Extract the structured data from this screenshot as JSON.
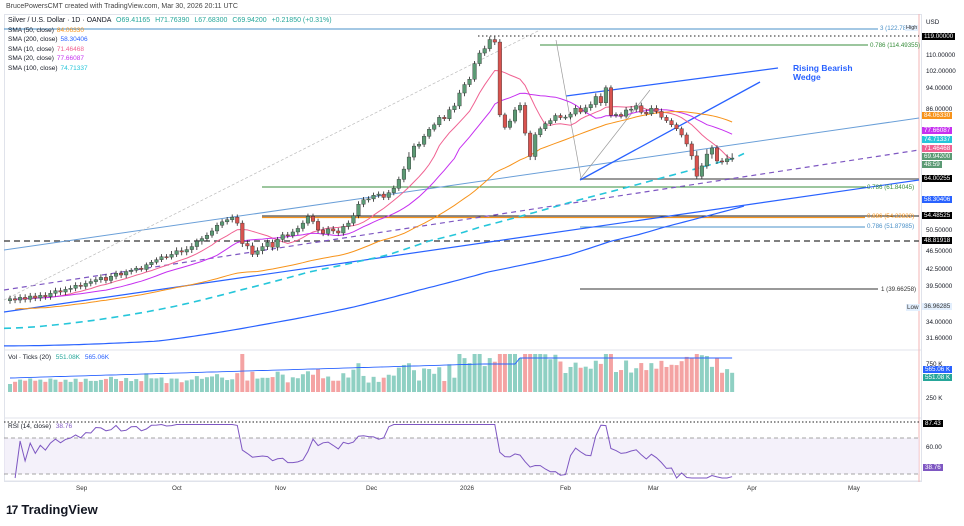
{
  "header": {
    "credit": "BrucePowersCMT created with TradingView.com, Mar 30, 2026 20:11 UTC",
    "symbol_line": "Silver / U.S. Dollar · 1D · OANDA",
    "ohlc": {
      "o": "O69.41165",
      "h": "H71.76390",
      "l": "L67.68300",
      "c": "C69.94200",
      "chg": "+0.21850 (+0.31%)"
    }
  },
  "legend": [
    {
      "label": "SMA (50, close)",
      "value": "84.06330",
      "color": "#f7931a"
    },
    {
      "label": "SMA (200, close)",
      "value": "58.30406",
      "color": "#2962ff"
    },
    {
      "label": "SMA (10, close)",
      "value": "71.46468",
      "color": "#f06292"
    },
    {
      "label": "SMA (20, close)",
      "value": "77.66087",
      "color": "#c630f0"
    },
    {
      "label": "SMA (100, close)",
      "value": "74.71337",
      "color": "#26c6da"
    }
  ],
  "annotation": {
    "line1": "Rising Bearish",
    "line2": "Wedge"
  },
  "fib_labels": [
    {
      "text": "3 (122.78",
      "color": "#4a90c8"
    },
    {
      "text": "0.786 (114.49355)",
      "color": "#388e3c"
    },
    {
      "text": "0.786 (61.84045)",
      "color": "#388e3c"
    },
    {
      "text": "0.886 (54.22832)",
      "color": "#f7931a"
    },
    {
      "text": "0.786 (51.87985)",
      "color": "#4a90c8"
    },
    {
      "text": "1 (39.66258)",
      "color": "#333333"
    }
  ],
  "price_axis": {
    "currency": "USD",
    "high_tag": "High",
    "low_tag": "Low",
    "ticks": [
      "110.00000",
      "102.00000",
      "94.00000",
      "86.00000",
      "50.50000",
      "46.50000",
      "42.50000",
      "39.50000",
      "34.00000",
      "31.60000"
    ],
    "pills": [
      {
        "text": "119.00000",
        "bg": "#000000"
      },
      {
        "text": "84.06330",
        "bg": "#f7931a"
      },
      {
        "text": "77.66087",
        "bg": "#c630f0"
      },
      {
        "text": "74.71337",
        "bg": "#26c6da"
      },
      {
        "text": "71.46468",
        "bg": "#f06292"
      },
      {
        "text": "69.94200",
        "bg": "#5b9a74"
      },
      {
        "text": "48:59",
        "bg": "#5b9a74"
      },
      {
        "text": "64.00255",
        "bg": "#000000"
      },
      {
        "text": "58.30406",
        "bg": "#2962ff"
      },
      {
        "text": "54.48525",
        "bg": "#000000"
      },
      {
        "text": "48.81918",
        "bg": "#000000"
      },
      {
        "text": "36.96285",
        "bg": "#e3effd"
      }
    ]
  },
  "volume": {
    "title": "Vol · Ticks (20)",
    "v1": "551.08K",
    "v2": "565.06K",
    "axis_ticks": [
      "750 K",
      "250 K"
    ],
    "pills": [
      {
        "text": "565.06 K",
        "bg": "#2962ff"
      },
      {
        "text": "551.08 K",
        "bg": "#26a69a"
      }
    ]
  },
  "rsi": {
    "title": "RSI (14, close)",
    "value": "38.76",
    "axis_ticks": [
      "60.00"
    ],
    "pills": [
      {
        "text": "87.43",
        "bg": "#000000"
      },
      {
        "text": "38.76",
        "bg": "#7e57c2"
      }
    ]
  },
  "time_axis": [
    "Sep",
    "Oct",
    "Nov",
    "Dec",
    "2026",
    "Feb",
    "Mar",
    "Apr",
    "May"
  ],
  "branding": "TradingView",
  "chart_data": {
    "type": "candlestick",
    "title": "Silver / U.S. Dollar · 1D · OANDA",
    "ylabel": "USD",
    "ylim": [
      30,
      125
    ],
    "x_range": [
      "Aug 2025",
      "May 2026"
    ],
    "closes": [
      38.2,
      38.0,
      38.4,
      38.1,
      38.6,
      38.3,
      38.7,
      38.5,
      39.0,
      39.4,
      39.2,
      39.6,
      39.8,
      40.3,
      40.1,
      40.6,
      40.9,
      41.2,
      41.6,
      41.1,
      41.8,
      42.3,
      42.0,
      42.6,
      42.9,
      43.4,
      43.1,
      44.2,
      44.8,
      45.4,
      46.1,
      46.0,
      46.6,
      47.2,
      47.0,
      47.4,
      47.9,
      48.8,
      49.4,
      50.2,
      51.1,
      52.3,
      53.1,
      53.6,
      54.2,
      52.8,
      48.4,
      48.0,
      46.6,
      47.2,
      47.9,
      48.6,
      47.8,
      49.2,
      50.3,
      50.1,
      50.9,
      51.6,
      52.8,
      54.4,
      53.2,
      51.3,
      50.6,
      51.5,
      51.1,
      50.7,
      52.0,
      52.8,
      54.6,
      57.3,
      58.4,
      58.6,
      59.6,
      59.9,
      59.0,
      60.3,
      61.5,
      63.9,
      66.8,
      70.1,
      72.4,
      73.0,
      75.7,
      78.4,
      80.3,
      83.5,
      82.9,
      86.8,
      88.1,
      92.6,
      96.1,
      98.6,
      106.2,
      111.4,
      113.5,
      117.8,
      116.6,
      84.6,
      79.2,
      81.9,
      86.7,
      88.3,
      76.9,
      70.2,
      76.3,
      78.6,
      80.8,
      82.1,
      84.3,
      83.4,
      83.6,
      85.0,
      87.3,
      86.0,
      87.5,
      88.6,
      91.4,
      89.2,
      94.6,
      84.4,
      84.8,
      84.0,
      86.7,
      87.0,
      88.2,
      85.9,
      85.1,
      87.3,
      86.2,
      83.5,
      82.1,
      80.3,
      78.6,
      76.2,
      73.1,
      70.3,
      64.8,
      67.7,
      70.6,
      71.8,
      69.1,
      68.9,
      69.7,
      69.9
    ],
    "sma_values_last": {
      "SMA10": 71.46468,
      "SMA20": 77.66087,
      "SMA50": 84.0633,
      "SMA100": 74.71337,
      "SMA200": 58.30406
    },
    "horizontal_levels": [
      {
        "label": "3 (122.78",
        "value": 122.78
      },
      {
        "label": "High",
        "value": 119.0
      },
      {
        "label": "0.786 (114.49355)",
        "value": 114.49355
      },
      {
        "label": "0.786 (61.84045)",
        "value": 61.84045
      },
      {
        "label": "0.886 (54.22832)",
        "value": 54.22832
      },
      {
        "label": "0.786 (51.87985)",
        "value": 51.87985
      },
      {
        "label": "1 (39.66258)",
        "value": 39.66258
      },
      {
        "label": "48.81918",
        "value": 48.81918
      },
      {
        "label": "54.48525",
        "value": 54.48525
      },
      {
        "label": "64.00255",
        "value": 64.00255
      }
    ],
    "volume_last": {
      "vol": "551.08K",
      "vol_ma20": "565.06K"
    },
    "rsi_last": 38.76,
    "rsi_levels": [
      70,
      30
    ]
  }
}
